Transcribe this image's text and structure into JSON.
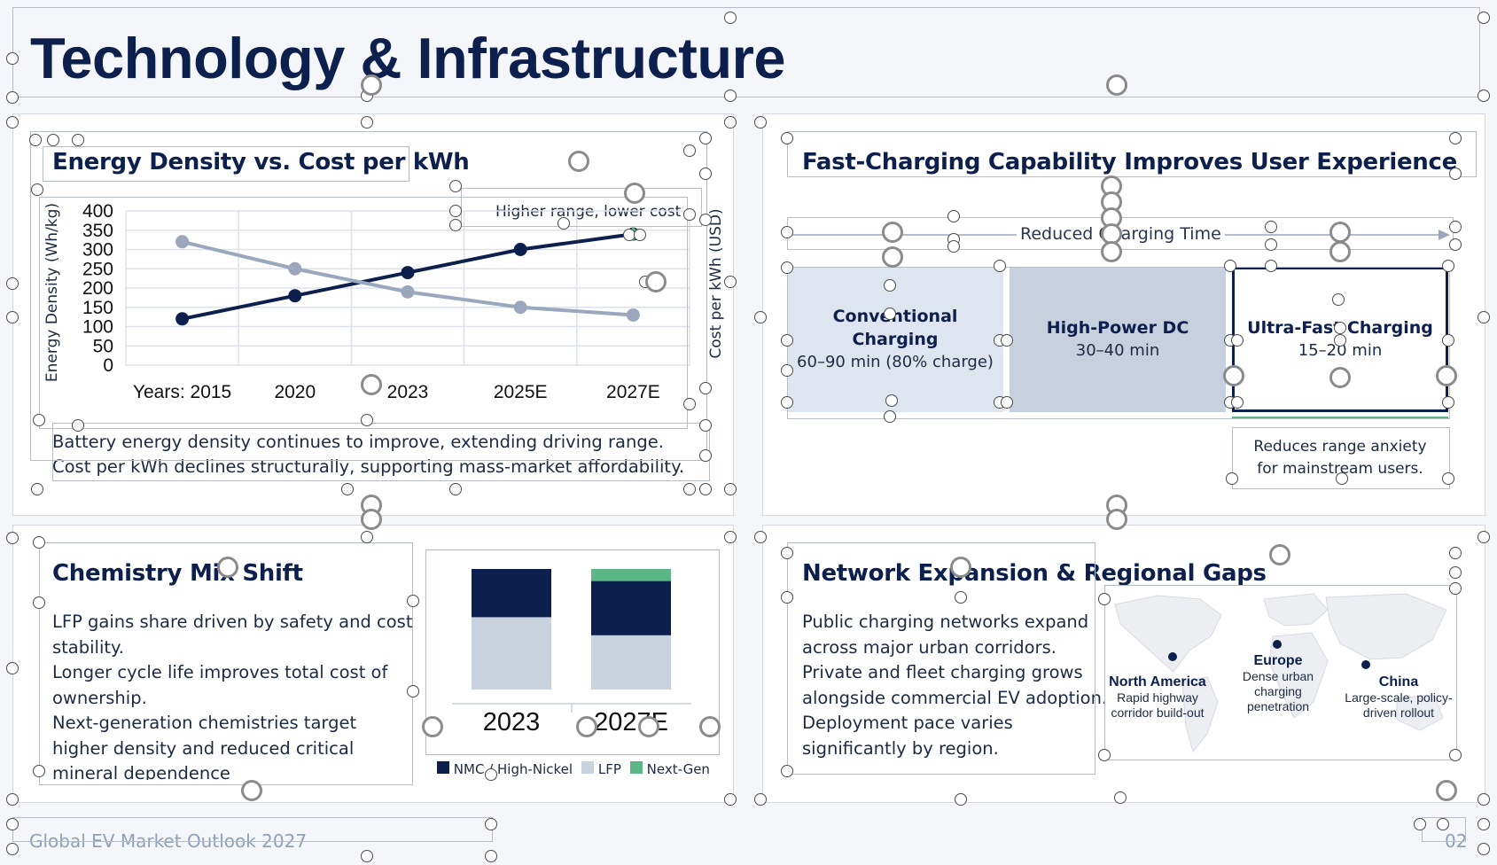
{
  "slide": {
    "title": "Technology & Infrastructure",
    "footer_left": "Global EV Market Outlook 2027",
    "footer_right": "02"
  },
  "energy_panel": {
    "title": "Energy Density vs. Cost per kWh",
    "annotation": "Higher range, lower cost",
    "ylabel_left": "Energy Density (Wh/kg)",
    "ylabel_right": "Cost per kWh (USD)",
    "caption_1": "Battery energy density continues to improve, extending driving range.",
    "caption_2": "Cost per kWh declines structurally, supporting mass-market affordability."
  },
  "charging_panel": {
    "title": "Fast-Charging Capability Improves User Experience",
    "arrow_label": "Reduced Charging Time",
    "cards": [
      {
        "label": "Conventional Charging",
        "sub": "60–90 min (80% charge)"
      },
      {
        "label": "High-Power DC",
        "sub": "30–40 min"
      },
      {
        "label": "Ultra-Fast Charging",
        "sub": "15–20 min"
      }
    ],
    "note": "Reduces range anxiety for mainstream users."
  },
  "chemistry_panel": {
    "title": "Chemistry Mix Shift",
    "bullets": [
      "LFP gains share driven by safety and cost stability.",
      "Longer cycle life improves total cost of ownership.",
      "Next-generation chemistries target higher density and reduced critical mineral dependence"
    ]
  },
  "network_panel": {
    "title": "Network Expansion & Regional Gaps",
    "bullets": [
      "Public charging networks expand across major urban corridors.",
      "Private and fleet charging grows alongside commercial EV adoption.",
      "Deployment pace varies significantly by region."
    ],
    "regions": [
      {
        "name": "North America",
        "desc": "Rapid highway corridor build-out"
      },
      {
        "name": "Europe",
        "desc": "Dense urban charging penetration"
      },
      {
        "name": "China",
        "desc": "Large-scale, policy-driven rollout"
      }
    ]
  },
  "colors": {
    "navy": "#0c1f4d",
    "gray_blue": "#9aa7bd",
    "light_bar": "#c9d3e0",
    "green": "#5cb585",
    "card_1": "#dfe5ee",
    "card_2": "#c6d0de"
  },
  "chart_data": [
    {
      "type": "line",
      "title": "Energy Density vs. Cost per kWh",
      "categories": [
        "Years: 2015",
        "2020",
        "2023",
        "2025E",
        "2027E"
      ],
      "yticks": [
        "400",
        "350",
        "300",
        "250",
        "200",
        "150",
        "100",
        "50",
        "0"
      ],
      "ylim": [
        0,
        400
      ],
      "grid": true,
      "series": [
        {
          "axis": "Energy Density (Wh/kg)",
          "color": "#0c1f4d",
          "values": [
            120,
            180,
            240,
            300,
            340
          ]
        },
        {
          "axis": "Cost per kWh (USD)",
          "color": "#9aa7bd",
          "values": [
            320,
            250,
            190,
            150,
            130
          ]
        }
      ]
    },
    {
      "type": "bar",
      "stacked": true,
      "categories": [
        "2023",
        "2027E"
      ],
      "series": [
        {
          "name": "NMC / High-Nickel",
          "color": "#0c1f4d",
          "values": [
            40,
            45
          ]
        },
        {
          "name": "LFP",
          "color": "#c9d3e0",
          "values": [
            60,
            45
          ]
        },
        {
          "name": "Next-Gen",
          "color": "#5cb585",
          "values": [
            0,
            10
          ]
        }
      ]
    }
  ]
}
